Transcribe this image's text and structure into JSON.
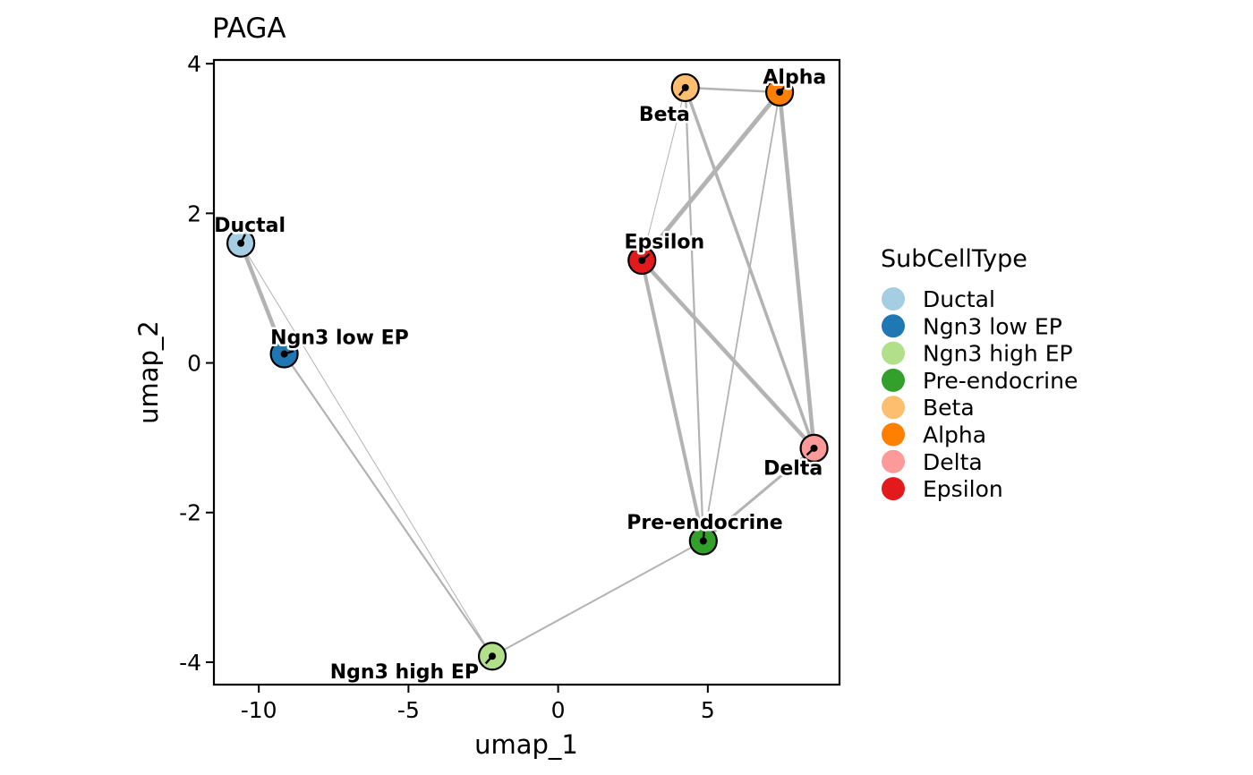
{
  "chart_data": {
    "type": "scatter",
    "title": "PAGA",
    "xlabel": "umap_1",
    "ylabel": "umap_2",
    "xlim": [
      -11.5,
      9.4
    ],
    "ylim": [
      -4.3,
      4.05
    ],
    "xticks": [
      {
        "value": -10,
        "label": "-10"
      },
      {
        "value": -5,
        "label": "-5"
      },
      {
        "value": 0,
        "label": "0"
      },
      {
        "value": 5,
        "label": "5"
      }
    ],
    "yticks": [
      {
        "value": -4,
        "label": "-4"
      },
      {
        "value": -2,
        "label": "-2"
      },
      {
        "value": 0,
        "label": "0"
      },
      {
        "value": 2,
        "label": "2"
      },
      {
        "value": 4,
        "label": "4"
      }
    ],
    "legend_title": "SubCellType",
    "legend_position": "right",
    "nodes": [
      {
        "name": "Ductal",
        "x": -10.6,
        "y": 1.6,
        "color": "#A6CEE3",
        "label_x": -10.3,
        "label_y": 1.85,
        "anchor": "middle"
      },
      {
        "name": "Ngn3 low EP",
        "x": -9.15,
        "y": 0.12,
        "color": "#1F78B4",
        "label_x": -7.3,
        "label_y": 0.35,
        "anchor": "middle"
      },
      {
        "name": "Ngn3 high EP",
        "x": -2.2,
        "y": -3.92,
        "color": "#B2DF8A",
        "label_x": -2.65,
        "label_y": -4.12,
        "anchor": "end"
      },
      {
        "name": "Pre-endocrine",
        "x": 4.85,
        "y": -2.38,
        "color": "#33A02C",
        "label_x": 4.9,
        "label_y": -2.12,
        "anchor": "middle"
      },
      {
        "name": "Beta",
        "x": 4.25,
        "y": 3.68,
        "color": "#FDBF6F",
        "label_x": 3.55,
        "label_y": 3.33,
        "anchor": "middle"
      },
      {
        "name": "Alpha",
        "x": 7.4,
        "y": 3.62,
        "color": "#FF7F00",
        "label_x": 7.9,
        "label_y": 3.83,
        "anchor": "middle"
      },
      {
        "name": "Delta",
        "x": 8.55,
        "y": -1.14,
        "color": "#FB9A99",
        "label_x": 7.85,
        "label_y": -1.4,
        "anchor": "middle"
      },
      {
        "name": "Epsilon",
        "x": 2.8,
        "y": 1.37,
        "color": "#E31A1C",
        "label_x": 3.55,
        "label_y": 1.63,
        "anchor": "middle"
      }
    ],
    "edges": [
      {
        "source": "Ductal",
        "target": "Ngn3 low EP",
        "weight": 4.5
      },
      {
        "source": "Ductal",
        "target": "Ngn3 high EP",
        "weight": 1
      },
      {
        "source": "Ngn3 low EP",
        "target": "Ngn3 high EP",
        "weight": 2.2
      },
      {
        "source": "Ngn3 high EP",
        "target": "Pre-endocrine",
        "weight": 2
      },
      {
        "source": "Pre-endocrine",
        "target": "Epsilon",
        "weight": 4
      },
      {
        "source": "Pre-endocrine",
        "target": "Beta",
        "weight": 2.2
      },
      {
        "source": "Pre-endocrine",
        "target": "Alpha",
        "weight": 1.8
      },
      {
        "source": "Pre-endocrine",
        "target": "Delta",
        "weight": 3
      },
      {
        "source": "Epsilon",
        "target": "Alpha",
        "weight": 5
      },
      {
        "source": "Epsilon",
        "target": "Delta",
        "weight": 4.5
      },
      {
        "source": "Epsilon",
        "target": "Beta",
        "weight": 1
      },
      {
        "source": "Beta",
        "target": "Alpha",
        "weight": 2.5
      },
      {
        "source": "Beta",
        "target": "Delta",
        "weight": 3.5
      },
      {
        "source": "Alpha",
        "target": "Delta",
        "weight": 4.5
      }
    ],
    "edge_color": "#B3B3B3"
  }
}
